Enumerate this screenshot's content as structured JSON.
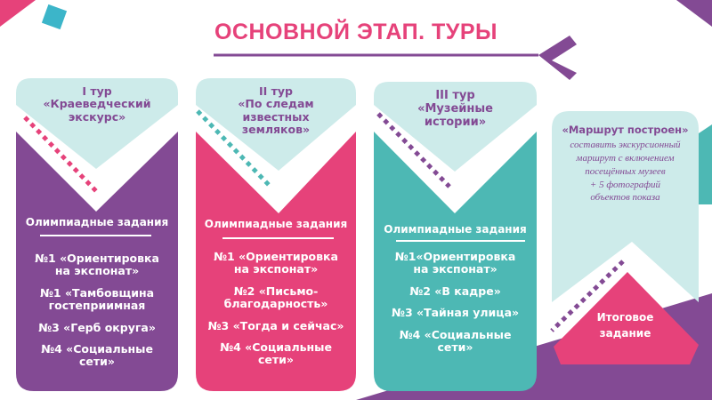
{
  "title": "ОСНОВНОЙ ЭТАП. ТУРЫ",
  "colors": {
    "purple": "#834A94",
    "pink": "#E6427A",
    "teal": "#4DB8B4",
    "light": "#CDEBEA"
  },
  "tours": [
    {
      "number": "I тур",
      "name_lines": [
        "«Краеведческий",
        "экскурс»"
      ],
      "tasks_heading": "Олимпиадные задания",
      "tasks": [
        [
          "№1 «Ориентировка",
          "на экспонат»"
        ],
        [
          "№1 «Тамбовщина",
          "гостеприимная"
        ],
        [
          "№3 «Герб округа»"
        ],
        [
          "№4 «Социальные",
          "сети»"
        ]
      ]
    },
    {
      "number": "II тур",
      "name_lines": [
        "«По следам",
        "известных",
        "земляков»"
      ],
      "tasks_heading": "Олимпиадные задания",
      "tasks": [
        [
          "№1 «Ориентировка",
          "на экспонат»"
        ],
        [
          "№2 «Письмо-",
          "благодарность»"
        ],
        [
          "№3 «Тогда и сейчас»"
        ],
        [
          "№4 «Социальные",
          "сети»"
        ]
      ]
    },
    {
      "number": "III тур",
      "name_lines": [
        "«Музейные",
        "истории»"
      ],
      "tasks_heading": "Олимпиадные задания",
      "tasks": [
        [
          "№1«Ориентировка",
          "на экспонат»"
        ],
        [
          "№2 «В кадре»"
        ],
        [
          "№3 «Тайная улица»"
        ],
        [
          "№4 «Социальные",
          "сети»"
        ]
      ]
    }
  ],
  "final": {
    "heading": "«Маршрут построен»",
    "description_lines": [
      "составить экскурсионный",
      "маршрут с включением",
      "посещённых музеев",
      "+ 5 фотографий",
      "объектов показа"
    ],
    "label_lines": [
      "Итоговое",
      "задание"
    ]
  }
}
